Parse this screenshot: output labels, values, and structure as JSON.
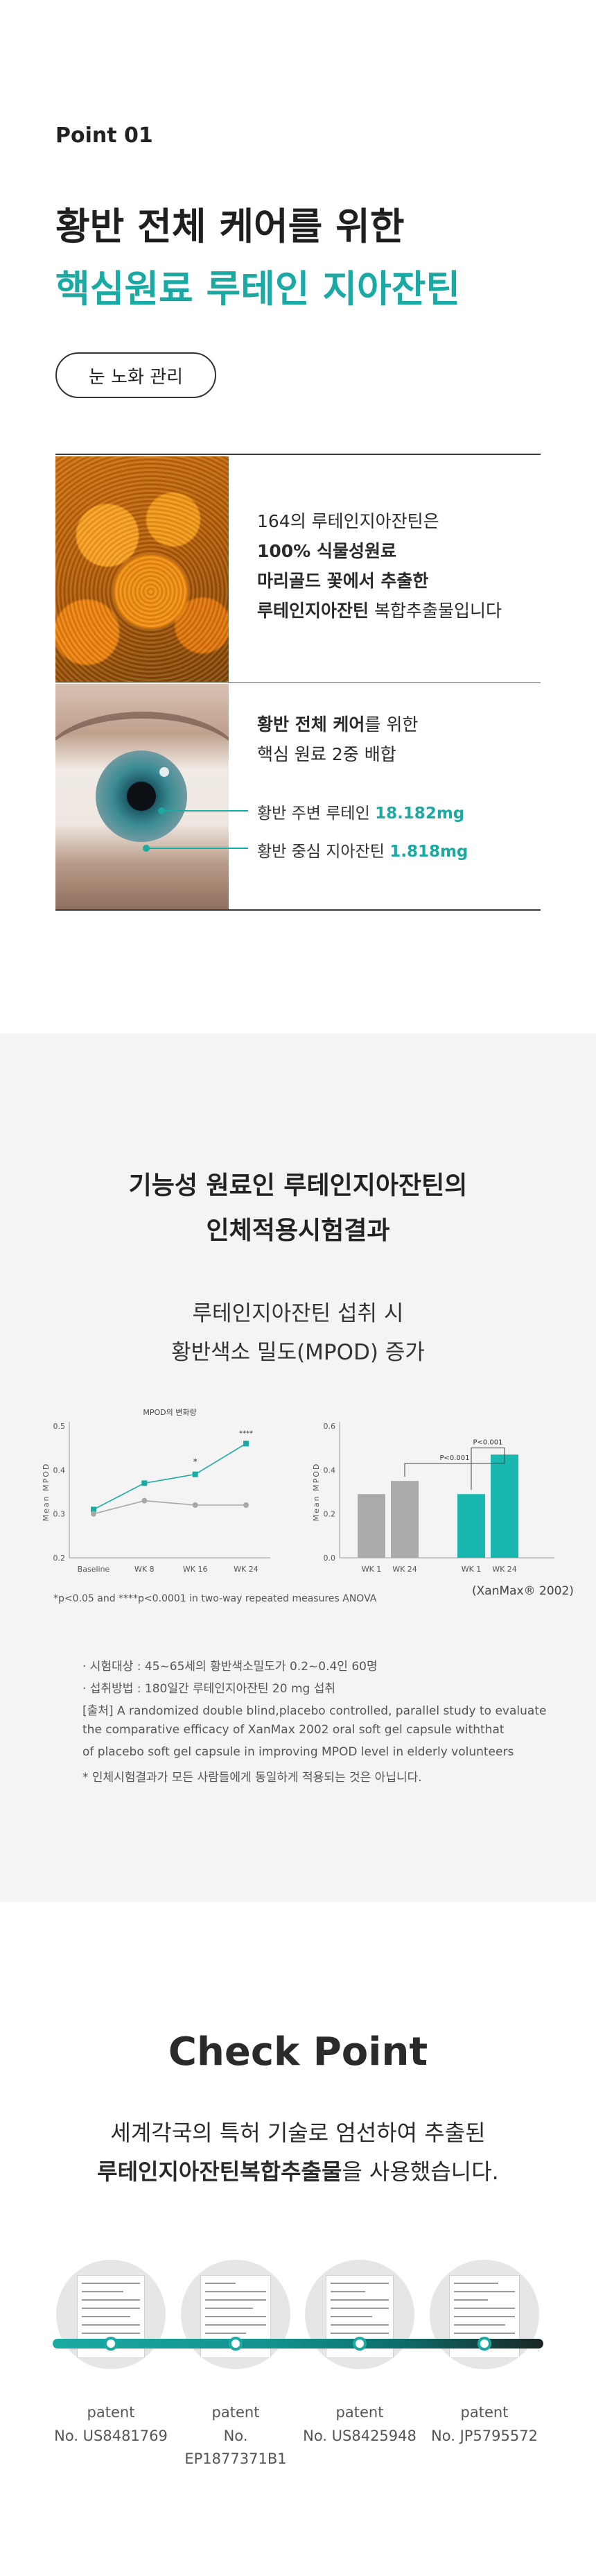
{
  "point": {
    "label": "Point 01",
    "headline_line1": "황반 전체 케어를 위한",
    "headline_line2": "핵심원료 루테인 지아잔틴",
    "tag": "눈 노화 관리"
  },
  "ingredient": {
    "line1": "164의 루테인지아잔틴은",
    "line2": "100% 식물성원료",
    "line3": "마리골드 꽃에서 추출한",
    "line4_bold": "루테인지아잔틴",
    "line4_rest": " 복합추출물입니다"
  },
  "formula": {
    "line1_bold": "황반 전체 케어",
    "line1_rest": "를 위한",
    "line2": "핵심 원료 2중 배합",
    "callout1_label": "황반 주변 루테인 ",
    "callout1_value": "18.182mg",
    "callout2_label": "황반 중심 지아잔틴 ",
    "callout2_value": "1.818mg"
  },
  "clinical": {
    "title_line1": "기능성 원료인 루테인지아잔틴의",
    "title_line2": "인체적용시험결과",
    "sub_line1": "루테인지아잔틴 섭취 시",
    "sub_line2": "황반색소 밀도(MPOD) 증가",
    "footnote": "*p<0.05 and ****p<0.0001 in two-way repeated measures ANOVA",
    "source": "(XanMax® 2002)",
    "notes": [
      "· 시험대상 : 45~65세의 황반색소밀도가 0.2~0.4인 60명",
      "· 섭취방법 : 180일간 루테인지아잔틴 20 mg 섭취",
      "[출처] A randomized double blind,placebo controlled, parallel study to evaluate",
      "the comparative efficacy of XanMax 2002 oral soft gel capsule withthat",
      "of placebo soft gel capsule in improving MPOD level in elderly volunteers",
      "* 인체시험결과가 모든 사람들에게 동일하게 적용되는 것은 아닙니다."
    ]
  },
  "chart_data": [
    {
      "type": "line",
      "title": "MPOD의 변화량",
      "xlabel": "",
      "ylabel": "Mean MPOD",
      "categories": [
        "Baseline",
        "WK 8",
        "WK 16",
        "WK 24"
      ],
      "ylim": [
        0.2,
        0.5
      ],
      "yticks": [
        "0.2",
        "0.3",
        "0.4",
        "0.5"
      ],
      "series": [
        {
          "values": [
            0.31,
            0.37,
            0.39,
            0.46
          ],
          "color": "#1aa9a3"
        },
        {
          "values": [
            0.3,
            0.33,
            0.32,
            0.32
          ],
          "color": "#a8a8a8"
        }
      ],
      "annotations": [
        "*",
        "****"
      ]
    },
    {
      "type": "bar",
      "title": "",
      "xlabel": "",
      "ylabel": "Mean MPOD",
      "categories": [
        "WK 1",
        "WK 24",
        "WK 1",
        "WK 24"
      ],
      "ylim": [
        0.0,
        0.6
      ],
      "yticks": [
        "0.0",
        "0.2",
        "0.4",
        "0.6"
      ],
      "values": [
        0.29,
        0.35,
        0.29,
        0.47
      ],
      "colors": [
        "#aaaaaa",
        "#aaaaaa",
        "#18b7b0",
        "#18b7b0"
      ],
      "annotations": [
        "P<0.001",
        "P<0.001"
      ]
    }
  ],
  "checkpoint": {
    "title": "Check Point",
    "sub_line1": "세계각국의 특허 기술로 엄선하여 추출된",
    "sub_line2_bold": "루테인지아잔틴복합추출물",
    "sub_line2_rest": "을 사용했습니다.",
    "patents": [
      {
        "label": "patent",
        "number": "No. US8481769"
      },
      {
        "label": "patent",
        "number": "No. EP1877371B1"
      },
      {
        "label": "patent",
        "number": "No. US8425948"
      },
      {
        "label": "patent",
        "number": "No. JP5795572"
      }
    ]
  },
  "colors": {
    "accent": "#1aa9a3",
    "text": "#222222",
    "panel_bg": "#f4f4f4"
  }
}
